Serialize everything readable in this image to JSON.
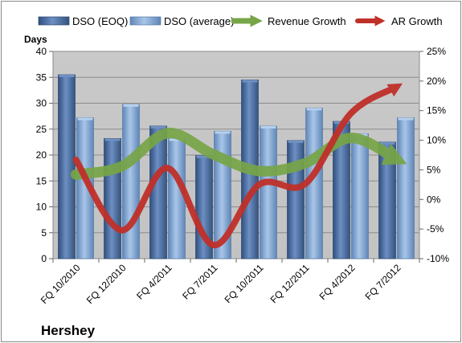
{
  "chart_data": {
    "type": "bar",
    "title": "Hershey",
    "categories": [
      "FQ 10/2010",
      "FQ 12/2010",
      "FQ 4/2011",
      "FQ 7/2011",
      "FQ 10/2011",
      "FQ 12/2011",
      "FQ 4/2012",
      "FQ 7/2012"
    ],
    "series": [
      {
        "name": "DSO (EOQ)",
        "type": "bar",
        "axis": "left",
        "color": "#4a6fa5",
        "values": [
          35.5,
          23.2,
          25.6,
          19.9,
          34.5,
          22.8,
          26.5,
          22.5
        ]
      },
      {
        "name": "DSO (average)",
        "type": "bar",
        "axis": "left",
        "color": "#7ea3cf",
        "values": [
          27.2,
          29.8,
          23.2,
          24.6,
          25.6,
          29.1,
          24.1,
          27.2
        ]
      },
      {
        "name": "Revenue Growth",
        "type": "line",
        "axis": "right",
        "color": "#77a547",
        "values": [
          4.2,
          5.6,
          11.2,
          7.6,
          4.8,
          6.1,
          10.4,
          6.8
        ]
      },
      {
        "name": "AR Growth",
        "type": "line",
        "axis": "right",
        "color": "#c0302a",
        "values": [
          6.7,
          -5.2,
          5.3,
          -7.7,
          2.5,
          2.6,
          14.5,
          19.0
        ]
      }
    ],
    "ylabel": "Days",
    "ylim": [
      0,
      40
    ],
    "yticks": [
      "0",
      "5",
      "10",
      "15",
      "20",
      "25",
      "30",
      "35",
      "40"
    ],
    "y2lim": [
      -10,
      25
    ],
    "y2ticks": [
      "-10%",
      "-5%",
      "0%",
      "5%",
      "10%",
      "15%",
      "20%",
      "25%"
    ],
    "grid": true,
    "legend_position": "top"
  }
}
